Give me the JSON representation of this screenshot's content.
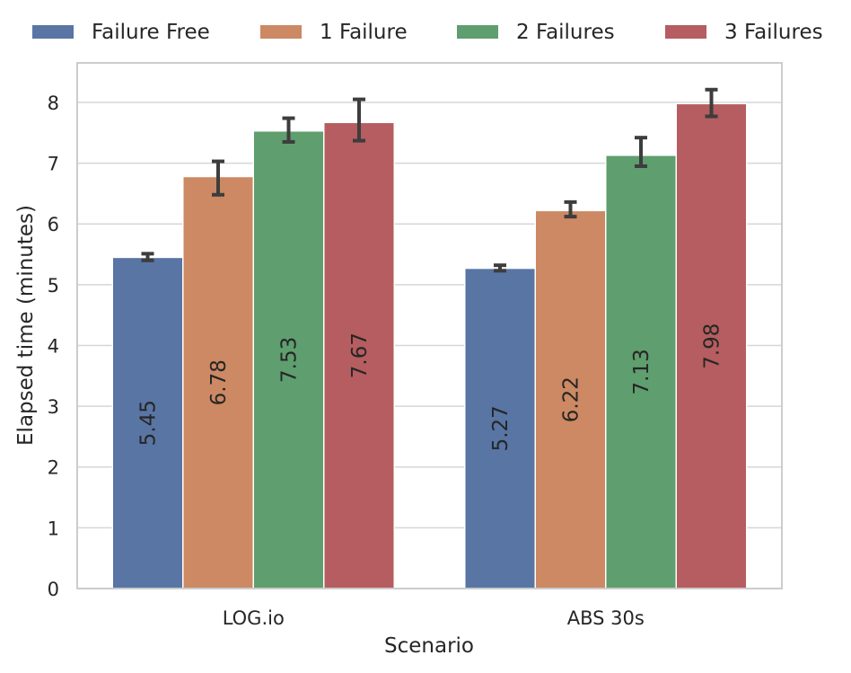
{
  "chart_data": {
    "type": "bar",
    "title": "",
    "xlabel": "Scenario",
    "ylabel": "Elapsed time (minutes)",
    "ylim": [
      0,
      8.65
    ],
    "yticks": [
      0,
      1,
      2,
      3,
      4,
      5,
      6,
      7,
      8
    ],
    "grid": true,
    "legend_position": "top",
    "categories": [
      "LOG.io",
      "ABS 30s"
    ],
    "series": [
      {
        "name": "Failure Free",
        "color": "#5875a4",
        "values": [
          5.45,
          5.27
        ],
        "errors": [
          [
            5.4,
            5.51
          ],
          [
            5.23,
            5.32
          ]
        ],
        "labels": [
          "5.45",
          "5.27"
        ]
      },
      {
        "name": "1 Failure",
        "color": "#cc8963",
        "values": [
          6.78,
          6.22
        ],
        "errors": [
          [
            6.48,
            7.03
          ],
          [
            6.12,
            6.36
          ]
        ],
        "labels": [
          "6.78",
          "6.22"
        ]
      },
      {
        "name": "2 Failures",
        "color": "#5f9e6e",
        "values": [
          7.53,
          7.13
        ],
        "errors": [
          [
            7.35,
            7.74
          ],
          [
            6.95,
            7.42
          ]
        ],
        "labels": [
          "7.53",
          "7.13"
        ]
      },
      {
        "name": "3 Failures",
        "color": "#b55d60",
        "values": [
          7.67,
          7.98
        ],
        "errors": [
          [
            7.37,
            8.05
          ],
          [
            7.77,
            8.21
          ]
        ],
        "labels": [
          "7.67",
          "7.98"
        ]
      }
    ]
  }
}
